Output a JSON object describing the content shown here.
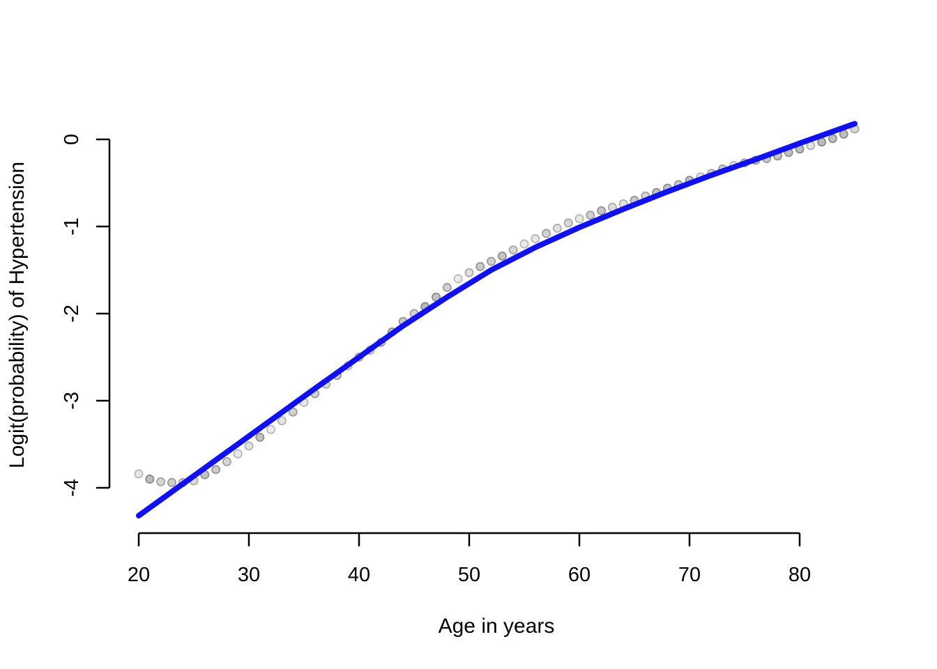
{
  "figure": {
    "background": "#ffffff"
  },
  "chart_data": {
    "type": "scatter",
    "title": "",
    "xlabel": "Age in years",
    "ylabel": "Logit(probability) of Hypertension",
    "x_ticks": [
      20,
      30,
      40,
      50,
      60,
      70,
      80
    ],
    "y_ticks": [
      0,
      -1,
      -2,
      -3,
      -4
    ],
    "xlim": [
      20,
      85
    ],
    "ylim": [
      -4.35,
      0.2
    ],
    "grid": false,
    "legend_position": "none",
    "colors": {
      "fitted_line": "#1111ee",
      "point_fill_base": "#cccccc",
      "point_stroke_base": "#969696",
      "axis": "#000000"
    },
    "series": [
      {
        "name": "empirical-logit-points",
        "type": "scatter",
        "marker": "circle",
        "points": [
          [
            20,
            -3.84
          ],
          [
            21,
            -3.9
          ],
          [
            22,
            -3.93
          ],
          [
            23,
            -3.94
          ],
          [
            24,
            -3.94
          ],
          [
            25,
            -3.92
          ],
          [
            26,
            -3.85
          ],
          [
            27,
            -3.79
          ],
          [
            28,
            -3.7
          ],
          [
            29,
            -3.61
          ],
          [
            30,
            -3.52
          ],
          [
            31,
            -3.42
          ],
          [
            32,
            -3.33
          ],
          [
            33,
            -3.23
          ],
          [
            34,
            -3.13
          ],
          [
            35,
            -3.02
          ],
          [
            36,
            -2.92
          ],
          [
            37,
            -2.81
          ],
          [
            38,
            -2.71
          ],
          [
            39,
            -2.6
          ],
          [
            40,
            -2.5
          ],
          [
            41,
            -2.42
          ],
          [
            42,
            -2.33
          ],
          [
            43,
            -2.21
          ],
          [
            44,
            -2.09
          ],
          [
            45,
            -2.0
          ],
          [
            46,
            -1.92
          ],
          [
            47,
            -1.81
          ],
          [
            48,
            -1.7
          ],
          [
            49,
            -1.6
          ],
          [
            50,
            -1.53
          ],
          [
            51,
            -1.46
          ],
          [
            52,
            -1.4
          ],
          [
            53,
            -1.34
          ],
          [
            54,
            -1.27
          ],
          [
            55,
            -1.2
          ],
          [
            56,
            -1.14
          ],
          [
            57,
            -1.08
          ],
          [
            58,
            -1.02
          ],
          [
            59,
            -0.96
          ],
          [
            60,
            -0.91
          ],
          [
            61,
            -0.87
          ],
          [
            62,
            -0.82
          ],
          [
            63,
            -0.78
          ],
          [
            64,
            -0.74
          ],
          [
            65,
            -0.7
          ],
          [
            66,
            -0.65
          ],
          [
            67,
            -0.61
          ],
          [
            68,
            -0.56
          ],
          [
            69,
            -0.52
          ],
          [
            70,
            -0.47
          ],
          [
            71,
            -0.43
          ],
          [
            72,
            -0.39
          ],
          [
            73,
            -0.34
          ],
          [
            74,
            -0.3
          ],
          [
            75,
            -0.27
          ],
          [
            76,
            -0.24
          ],
          [
            77,
            -0.22
          ],
          [
            78,
            -0.19
          ],
          [
            79,
            -0.15
          ],
          [
            80,
            -0.11
          ],
          [
            81,
            -0.07
          ],
          [
            82,
            -0.03
          ],
          [
            83,
            0.01
          ],
          [
            84,
            0.06
          ],
          [
            85,
            0.12
          ]
        ]
      },
      {
        "name": "fitted-spline-line",
        "type": "line",
        "points": [
          [
            20,
            -4.32
          ],
          [
            24,
            -3.955
          ],
          [
            28,
            -3.59
          ],
          [
            32,
            -3.225
          ],
          [
            36,
            -2.86
          ],
          [
            40,
            -2.5
          ],
          [
            44,
            -2.14
          ],
          [
            48,
            -1.81
          ],
          [
            52,
            -1.5
          ],
          [
            56,
            -1.24
          ],
          [
            60,
            -1.01
          ],
          [
            64,
            -0.8
          ],
          [
            68,
            -0.6
          ],
          [
            72,
            -0.41
          ],
          [
            76,
            -0.23
          ],
          [
            80,
            -0.045
          ],
          [
            85,
            0.18
          ]
        ]
      }
    ]
  }
}
